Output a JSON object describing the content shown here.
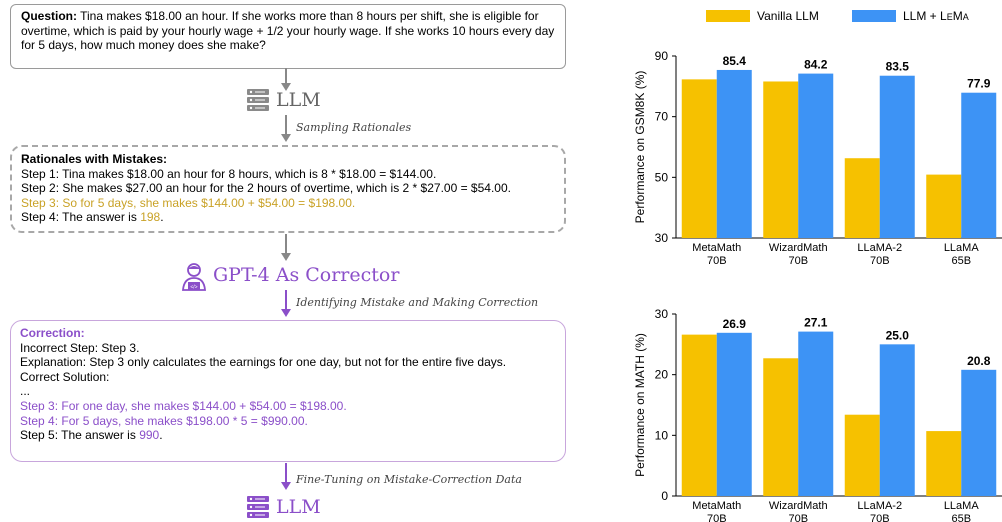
{
  "question": {
    "label": "Question:",
    "text": " Tina makes $18.00 an hour. If she works more than 8 hours per shift, she is eligible for overtime, which is paid by your hourly wage + 1/2 your hourly wage. If she works 10 hours every day for 5 days, how much money does she make?"
  },
  "llm1": {
    "label": "LLM"
  },
  "sampling": {
    "label": "Sampling Rationales"
  },
  "rationales": {
    "title": "Rationales with Mistakes:",
    "step1": "Step 1: Tina makes $18.00 an hour for 8 hours, which is 8 * $18.00 = $144.00.",
    "step2": "Step 2: She makes $27.00 an hour for the 2 hours of overtime, which is 2 * $27.00 = $54.00.",
    "step3": "Step 3: So for 5 days, she makes $144.00 + $54.00 = $198.00.",
    "step4_prefix": "Step 4: The answer is ",
    "step4_value": "198",
    "step4_suffix": "."
  },
  "gpt4": {
    "label": "GPT-4 As Corrector"
  },
  "identifying": {
    "label": "Identifying Mistake and Making Correction"
  },
  "correction": {
    "title": "Correction:",
    "incorrect": "Incorrect Step: Step 3.",
    "explanation": "Explanation: Step 3 only calculates the earnings for one day, but not for the entire five days.",
    "solution": "Correct Solution:",
    "ellipsis": "...",
    "step3": "Step 3: For one day, she makes $144.00 + $54.00 = $198.00.",
    "step4": "Step 4: For 5 days, she makes $198.00 * 5 = $990.00.",
    "step5_prefix": "Step 5: The answer is ",
    "step5_value": "990",
    "step5_suffix": "."
  },
  "finetuning": {
    "label": "Fine-Tuning on Mistake-Correction Data"
  },
  "llm2": {
    "label": "LLM"
  },
  "legend": {
    "vanilla": "Vanilla LLM",
    "lema_prefix": "LLM + ",
    "lema_L": "L",
    "lema_rest": "E",
    "lema_M": "M",
    "lema_end": "A"
  },
  "colors": {
    "vanilla": "#f6c100",
    "lema": "#3d93f5",
    "purple": "#8b4fc9",
    "gold": "#c9a227"
  },
  "icons": {
    "llm": "server-icon",
    "gpt4": "person-laptop-icon"
  },
  "chart_data": [
    {
      "type": "bar",
      "categories": [
        [
          "MetaMath",
          "70B"
        ],
        [
          "WizardMath",
          "70B"
        ],
        [
          "LLaMA-2",
          "70B"
        ],
        [
          "LLaMA",
          "65B"
        ]
      ],
      "series": [
        {
          "name": "Vanilla LLM",
          "values": [
            82.3,
            81.6,
            56.3,
            50.9
          ]
        },
        {
          "name": "LLM + LEMA",
          "values": [
            85.4,
            84.2,
            83.5,
            77.9
          ]
        }
      ],
      "data_labels": [
        "85.4",
        "84.2",
        "83.5",
        "77.9"
      ],
      "ylabel": "Performance on GSM8K (%)",
      "ylim": [
        30,
        90
      ],
      "yticks": [
        30,
        50,
        70,
        90
      ]
    },
    {
      "type": "bar",
      "categories": [
        [
          "MetaMath",
          "70B"
        ],
        [
          "WizardMath",
          "70B"
        ],
        [
          "LLaMA-2",
          "70B"
        ],
        [
          "LLaMA",
          "65B"
        ]
      ],
      "series": [
        {
          "name": "Vanilla LLM",
          "values": [
            26.6,
            22.7,
            13.4,
            10.7
          ]
        },
        {
          "name": "LLM + LEMA",
          "values": [
            26.9,
            27.1,
            25.0,
            20.8
          ]
        }
      ],
      "data_labels": [
        "26.9",
        "27.1",
        "25.0",
        "20.8"
      ],
      "ylabel": "Performance on MATH (%)",
      "ylim": [
        0,
        30
      ],
      "yticks": [
        0,
        10,
        20,
        30
      ]
    }
  ]
}
